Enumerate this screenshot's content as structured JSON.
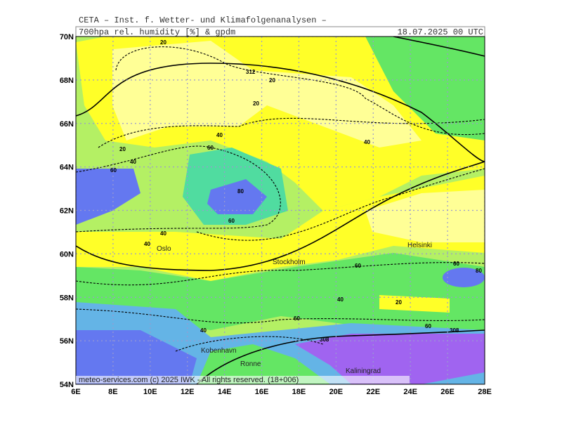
{
  "header": {
    "title": "CETA – Inst. f. Wetter- und Klimafolgenanalysen –",
    "subtitle": "700hpa rel. humidity [%] & gpdm",
    "date": "18.07.2025 00 UTC"
  },
  "axes": {
    "lat": [
      "70N",
      "68N",
      "66N",
      "64N",
      "62N",
      "60N",
      "58N",
      "56N",
      "54N"
    ],
    "lon": [
      "6E",
      "8E",
      "10E",
      "12E",
      "14E",
      "16E",
      "18E",
      "20E",
      "22E",
      "24E",
      "26E",
      "28E"
    ]
  },
  "cities": [
    "Oslo",
    "Stockholm",
    "Helsinki",
    "Kobenhavn",
    "Ronne",
    "Kaliningrad"
  ],
  "contour_labels": [
    "20",
    "312",
    "20",
    "20",
    "40",
    "40",
    "60",
    "80",
    "60",
    "60",
    "40",
    "40",
    "20",
    "40",
    "60",
    "60",
    "80",
    "40",
    "60",
    "60",
    "308",
    "308",
    "40",
    "20"
  ],
  "footer": "meteo-services.com (c) 2025 IWK - All rights reserved. (18+006)"
}
